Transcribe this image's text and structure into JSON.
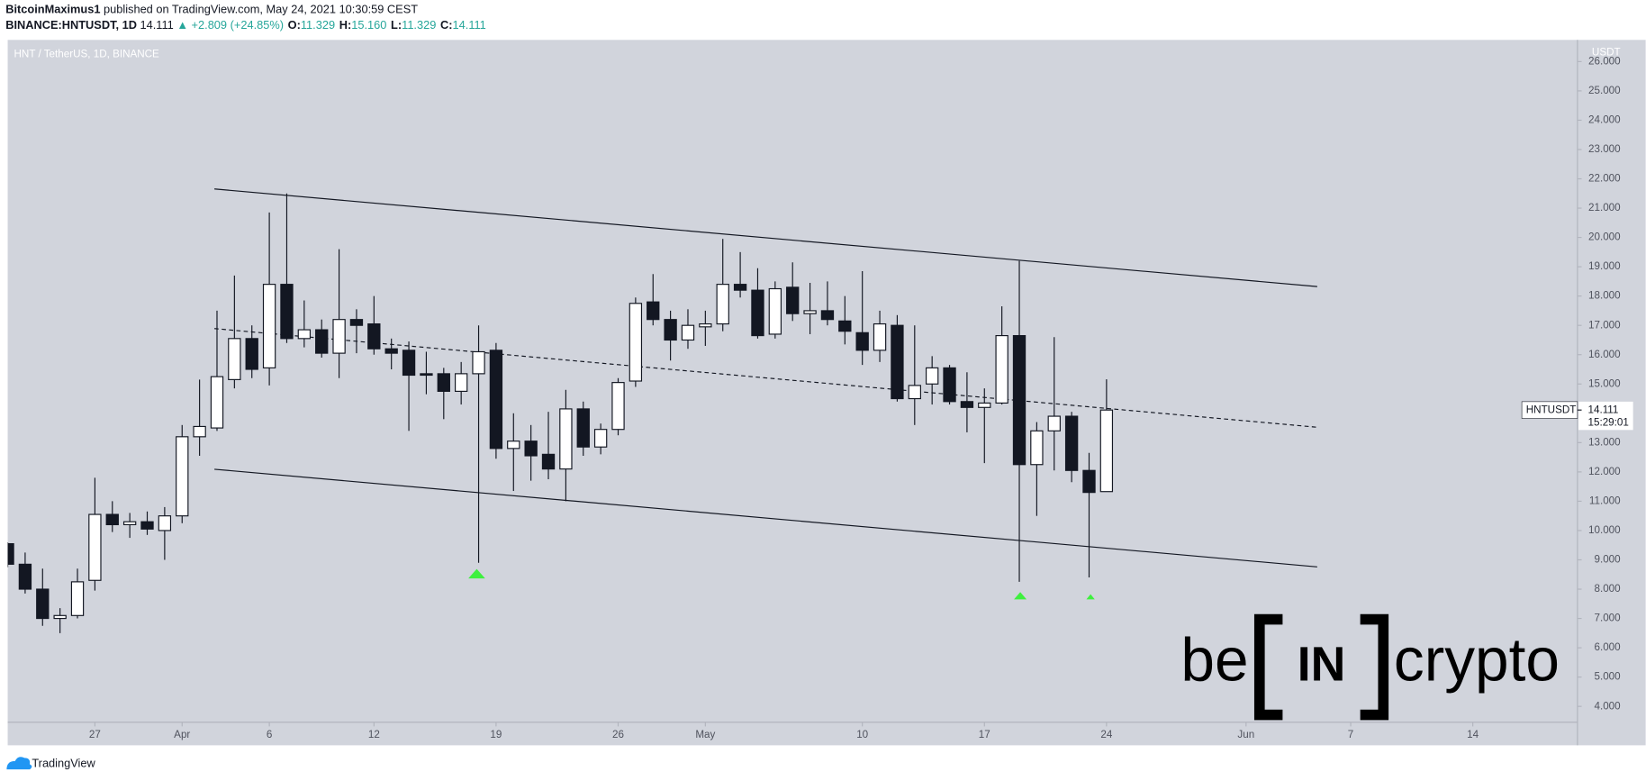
{
  "header": {
    "author": "BitcoinMaximus1",
    "published": "published on TradingView.com, May 24, 2021 10:30:59 CEST",
    "symbol": "BINANCE:HNTUSDT, 1D",
    "last": "14.111",
    "change": "▲ +2.809 (+24.85%)",
    "ohlc": [
      {
        "label": "O:",
        "value": "11.329"
      },
      {
        "label": "H:",
        "value": "15.160"
      },
      {
        "label": "L:",
        "value": "11.329"
      },
      {
        "label": "C:",
        "value": "14.111"
      }
    ]
  },
  "chart_data": {
    "type": "candlestick",
    "title": "HNT / TetherUS, 1D, BINANCE",
    "y_axis_unit": "USDT",
    "up_color": "#ffffff",
    "down_color": "#131722",
    "x": [
      "2021-03-22",
      "2021-03-23",
      "2021-03-24",
      "2021-03-25",
      "2021-03-26",
      "2021-03-27",
      "2021-03-28",
      "2021-03-29",
      "2021-03-30",
      "2021-03-31",
      "2021-04-01",
      "2021-04-02",
      "2021-04-03",
      "2021-04-04",
      "2021-04-05",
      "2021-04-06",
      "2021-04-07",
      "2021-04-08",
      "2021-04-09",
      "2021-04-10",
      "2021-04-11",
      "2021-04-12",
      "2021-04-13",
      "2021-04-14",
      "2021-04-15",
      "2021-04-16",
      "2021-04-17",
      "2021-04-18",
      "2021-04-19",
      "2021-04-20",
      "2021-04-21",
      "2021-04-22",
      "2021-04-23",
      "2021-04-24",
      "2021-04-25",
      "2021-04-26",
      "2021-04-27",
      "2021-04-28",
      "2021-04-29",
      "2021-04-30",
      "2021-05-01",
      "2021-05-02",
      "2021-05-03",
      "2021-05-04",
      "2021-05-05",
      "2021-05-06",
      "2021-05-07",
      "2021-05-08",
      "2021-05-09",
      "2021-05-10",
      "2021-05-11",
      "2021-05-12",
      "2021-05-13",
      "2021-05-14",
      "2021-05-15",
      "2021-05-16",
      "2021-05-17",
      "2021-05-18",
      "2021-05-19",
      "2021-05-20",
      "2021-05-21",
      "2021-05-22",
      "2021-05-23",
      "2021-05-24"
    ],
    "open": [
      9.55,
      8.85,
      8.0,
      7.0,
      7.1,
      8.3,
      10.55,
      10.2,
      10.3,
      10.0,
      10.5,
      13.2,
      13.5,
      15.15,
      16.55,
      15.55,
      18.4,
      16.55,
      16.85,
      16.05,
      17.2,
      17.05,
      16.2,
      16.15,
      15.35,
      15.35,
      14.75,
      15.35,
      16.15,
      12.8,
      13.05,
      12.6,
      12.1,
      14.15,
      12.85,
      13.45,
      15.1,
      17.8,
      17.2,
      16.5,
      16.95,
      17.05,
      18.4,
      18.2,
      16.7,
      18.3,
      17.4,
      17.5,
      17.15,
      16.75,
      16.15,
      17.0,
      14.5,
      15.0,
      15.55,
      14.4,
      14.2,
      14.35,
      16.65,
      12.25,
      13.4,
      13.9,
      12.05,
      11.329
    ],
    "high": [
      9.6,
      9.25,
      8.7,
      7.35,
      8.7,
      11.8,
      11.0,
      10.6,
      10.65,
      10.8,
      13.6,
      15.15,
      17.5,
      18.7,
      17.0,
      20.85,
      21.5,
      17.85,
      17.2,
      19.6,
      17.55,
      18.0,
      16.55,
      16.45,
      16.1,
      15.55,
      15.75,
      17.0,
      16.4,
      14.0,
      13.6,
      14.05,
      14.8,
      14.4,
      13.65,
      15.2,
      17.95,
      18.75,
      17.5,
      17.55,
      17.5,
      19.95,
      19.5,
      18.95,
      18.5,
      19.15,
      18.45,
      18.5,
      18.0,
      18.85,
      17.5,
      17.35,
      17.0,
      15.95,
      15.65,
      15.4,
      14.85,
      17.65,
      19.2,
      13.7,
      16.6,
      14.05,
      12.65,
      15.16
    ],
    "low": [
      8.75,
      7.85,
      6.75,
      6.5,
      7.0,
      7.95,
      9.95,
      9.75,
      9.85,
      9.0,
      10.25,
      12.55,
      13.4,
      14.85,
      15.2,
      14.95,
      16.4,
      16.25,
      15.9,
      15.2,
      16.05,
      16.0,
      15.5,
      13.4,
      14.65,
      13.8,
      14.3,
      8.9,
      12.45,
      11.35,
      11.7,
      11.75,
      11.0,
      12.55,
      12.6,
      13.25,
      14.9,
      17.0,
      15.8,
      16.2,
      16.3,
      16.8,
      17.95,
      16.55,
      16.55,
      17.15,
      16.7,
      17.0,
      16.35,
      15.65,
      15.75,
      14.4,
      13.6,
      14.3,
      14.3,
      13.35,
      12.3,
      14.3,
      8.25,
      10.5,
      12.05,
      11.65,
      8.4,
      11.329
    ],
    "close": [
      8.85,
      8.0,
      7.0,
      7.1,
      8.25,
      10.55,
      10.2,
      10.3,
      10.05,
      10.5,
      13.2,
      13.55,
      15.25,
      16.55,
      15.5,
      18.4,
      16.55,
      16.85,
      16.05,
      17.2,
      17.0,
      16.2,
      16.05,
      15.3,
      15.3,
      14.75,
      15.35,
      16.1,
      12.8,
      13.05,
      12.55,
      12.1,
      14.15,
      12.85,
      13.45,
      15.05,
      17.75,
      17.2,
      16.5,
      17.0,
      17.05,
      18.4,
      18.2,
      16.65,
      18.25,
      17.4,
      17.5,
      17.2,
      16.8,
      16.15,
      17.05,
      14.5,
      14.95,
      15.55,
      14.4,
      14.2,
      14.35,
      16.65,
      12.25,
      13.4,
      13.9,
      12.05,
      11.3,
      14.111
    ],
    "xlim": [
      "2021-03-22",
      "2021-06-20"
    ],
    "xticks": [
      {
        "value": "2021-03-27",
        "label": "27"
      },
      {
        "value": "2021-04-01",
        "label": "Apr"
      },
      {
        "value": "2021-04-06",
        "label": "6"
      },
      {
        "value": "2021-04-12",
        "label": "12"
      },
      {
        "value": "2021-04-19",
        "label": "19"
      },
      {
        "value": "2021-04-26",
        "label": "26"
      },
      {
        "value": "2021-05-01",
        "label": "May"
      },
      {
        "value": "2021-05-10",
        "label": "10"
      },
      {
        "value": "2021-05-17",
        "label": "17"
      },
      {
        "value": "2021-05-24",
        "label": "24"
      },
      {
        "value": "2021-06-01",
        "label": "Jun"
      },
      {
        "value": "2021-06-07",
        "label": "7"
      },
      {
        "value": "2021-06-14",
        "label": "14"
      }
    ],
    "ylim": [
      3.46,
      26.74
    ],
    "yticks": [
      {
        "value": 4,
        "label": "4.000"
      },
      {
        "value": 5,
        "label": "5.000"
      },
      {
        "value": 6,
        "label": "6.000"
      },
      {
        "value": 7,
        "label": "7.000"
      },
      {
        "value": 8,
        "label": "8.000"
      },
      {
        "value": 9,
        "label": "9.000"
      },
      {
        "value": 10,
        "label": "10.000"
      },
      {
        "value": 11,
        "label": "11.000"
      },
      {
        "value": 12,
        "label": "12.000"
      },
      {
        "value": 13,
        "label": "13.000"
      },
      {
        "value": 15,
        "label": "15.000"
      },
      {
        "value": 16,
        "label": "16.000"
      },
      {
        "value": 17,
        "label": "17.000"
      },
      {
        "value": 18,
        "label": "18.000"
      },
      {
        "value": 19,
        "label": "19.000"
      },
      {
        "value": 20,
        "label": "20.000"
      },
      {
        "value": 21,
        "label": "21.000"
      },
      {
        "value": 22,
        "label": "22.000"
      },
      {
        "value": 23,
        "label": "23.000"
      },
      {
        "value": 24,
        "label": "24.000"
      },
      {
        "value": 25,
        "label": "25.000"
      },
      {
        "value": 26,
        "label": "26.000"
      }
    ],
    "grid": false,
    "price_label": {
      "symbol": "HNTUSDT",
      "price": "14.111",
      "countdown": "15:29:01"
    }
  },
  "watermark": {
    "left": "be",
    "middle": "IN",
    "right": "crypto"
  },
  "footer": {
    "brand": "TradingView"
  }
}
